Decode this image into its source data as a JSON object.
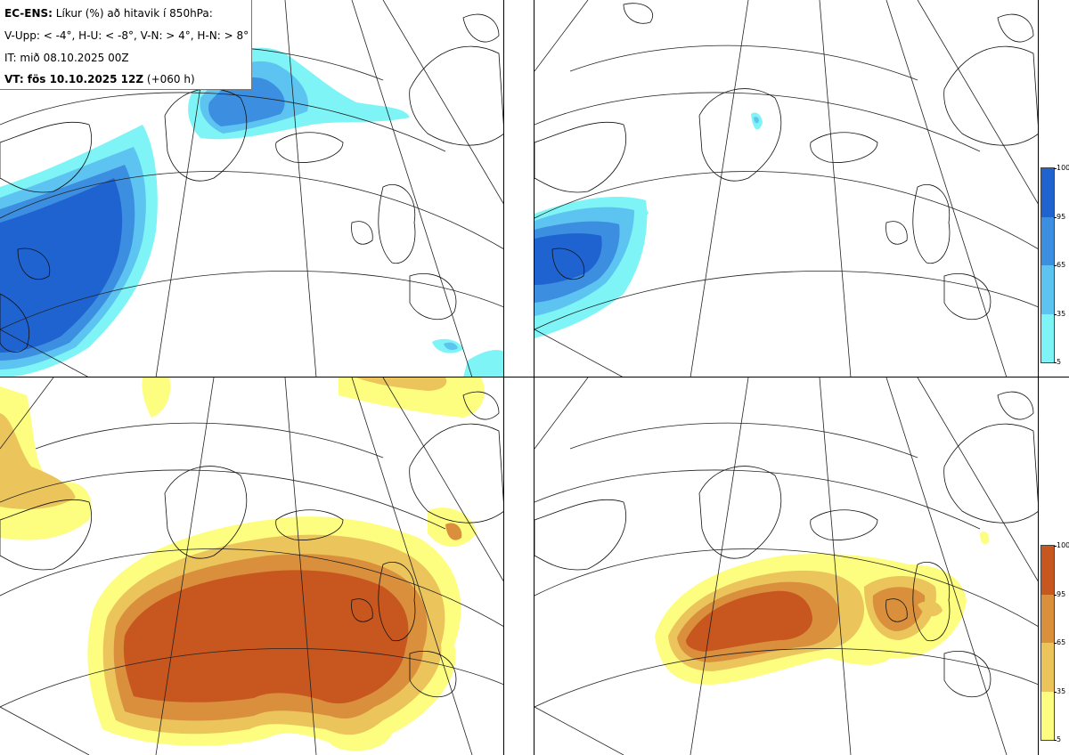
{
  "info": {
    "model": "EC-ENS:",
    "title": "Líkur (%) að hitavik í 850hPa:",
    "criteria": "V-Upp: < -4°, H-U: < -8°, V-N: > 4°, H-N: > 8°",
    "init_time": "IT: mið 08.10.2025 00Z",
    "valid_label": "VT: fös 10.10.2025 12Z",
    "valid_lead": "(+060 h)"
  },
  "colorbars": {
    "cold": {
      "ticks": [
        "100",
        "95",
        "65",
        "35",
        "5"
      ],
      "colors": [
        "#1f63d0",
        "#3c8fe0",
        "#5dc3f0",
        "#7ff4f6"
      ]
    },
    "warm": {
      "ticks": [
        "100",
        "95",
        "65",
        "35",
        "5"
      ],
      "colors": [
        "#c8561f",
        "#d98f3c",
        "#ebc45c",
        "#fdfd80"
      ]
    }
  },
  "panels": [
    {
      "id": "top-left",
      "variable": "cold anomaly < -4°"
    },
    {
      "id": "top-right",
      "variable": "cold anomaly < -8°"
    },
    {
      "id": "bottom-left",
      "variable": "warm anomaly > 4°"
    },
    {
      "id": "bottom-right",
      "variable": "warm anomaly > 8°"
    }
  ]
}
